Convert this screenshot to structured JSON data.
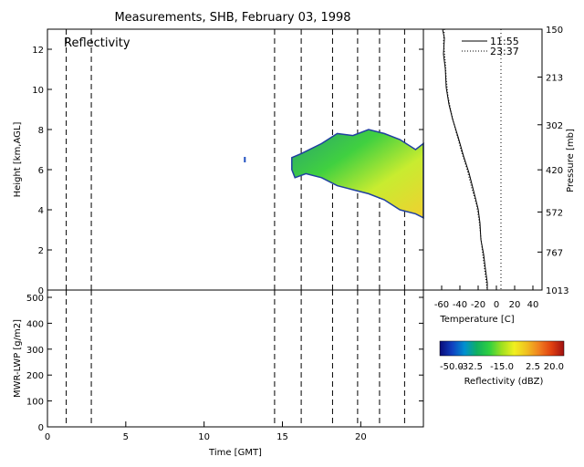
{
  "chart_data": [
    {
      "type": "heatmap",
      "title": "Measurements, SHB, February 03, 1998",
      "panel_label": "Reflectivity",
      "ylabel": "Height [km,AGL]",
      "xlim": [
        0,
        24
      ],
      "ylim": [
        0,
        13
      ],
      "y_ticks": [
        "0",
        "2",
        "4",
        "6",
        "8",
        "10",
        "12"
      ],
      "launch_times_gmt": [
        1.2,
        2.8,
        14.5,
        16.2,
        18.2,
        19.8,
        21.2,
        22.8
      ],
      "echo_regions": [
        {
          "x": [
            15.6,
            16.2,
            17.5,
            18.5,
            19.5,
            20.5,
            21.5,
            22.5,
            23.5,
            24.0,
            24.0,
            23.5,
            22.5,
            21.5,
            20.5,
            19.5,
            18.5,
            17.5,
            16.5,
            15.8,
            15.6
          ],
          "y": [
            6.6,
            6.8,
            7.3,
            7.8,
            7.7,
            8.0,
            7.8,
            7.5,
            7.0,
            7.3,
            3.6,
            3.8,
            4.0,
            4.5,
            4.8,
            5.0,
            5.2,
            5.6,
            5.8,
            5.6,
            6.0
          ]
        }
      ],
      "isolated_echo": {
        "x": 12.6,
        "y": 6.5
      }
    },
    {
      "type": "line",
      "ylabel": "MWR-LWP [g/m2]",
      "xlabel": "Time [GMT]",
      "xlim": [
        0,
        24
      ],
      "ylim": [
        0,
        500
      ],
      "x_ticks": [
        "0",
        "5",
        "10",
        "15",
        "20"
      ],
      "y_ticks": [
        "0",
        "100",
        "200",
        "300",
        "400",
        "500"
      ],
      "launch_times_gmt": [
        1.2,
        2.8,
        14.5,
        16.2,
        18.2,
        19.8,
        21.2,
        22.8
      ],
      "series": []
    },
    {
      "type": "line",
      "xlabel": "Temperature [C]",
      "ylabel": "Pressure [mb]",
      "xlim": [
        -80,
        50
      ],
      "x_ticks": [
        "-60",
        "-40",
        "-20",
        "0",
        "20",
        "40"
      ],
      "pressure_ticks": [
        "150",
        "213",
        "302",
        "420",
        "572",
        "767",
        "1013"
      ],
      "series": [
        {
          "name": "11:55",
          "style": "solid",
          "temperature": [
            -59,
            -57,
            -58,
            -56,
            -55,
            -52,
            -48,
            -42,
            -36,
            -30,
            -25,
            -20,
            -18,
            -17,
            -14,
            -12,
            -10,
            -10
          ],
          "pressure": [
            150,
            160,
            180,
            200,
            230,
            260,
            290,
            330,
            380,
            430,
            490,
            560,
            620,
            700,
            780,
            870,
            960,
            1013
          ]
        },
        {
          "name": "23:37",
          "style": "dotted",
          "temperature": [
            -57,
            -58,
            -56,
            -55,
            -53,
            -49,
            -44,
            -38,
            -32,
            -27,
            -22,
            -19,
            -17,
            -15,
            -13,
            -11,
            -10
          ],
          "pressure": [
            150,
            165,
            190,
            215,
            245,
            280,
            320,
            370,
            420,
            480,
            540,
            610,
            690,
            780,
            870,
            960,
            1013
          ]
        }
      ]
    },
    {
      "type": "colorbar",
      "label": "Reflectivity (dBZ)",
      "tick_labels": [
        "-50.0",
        "-32.5",
        "-15.0",
        "2.5",
        "20.0"
      ],
      "range": [
        -50,
        20
      ],
      "colors": [
        "#0a0a78",
        "#1040c0",
        "#0090d0",
        "#10b060",
        "#30d040",
        "#a0e020",
        "#f0f020",
        "#f0c020",
        "#f08020",
        "#e04010",
        "#a01010"
      ]
    }
  ]
}
